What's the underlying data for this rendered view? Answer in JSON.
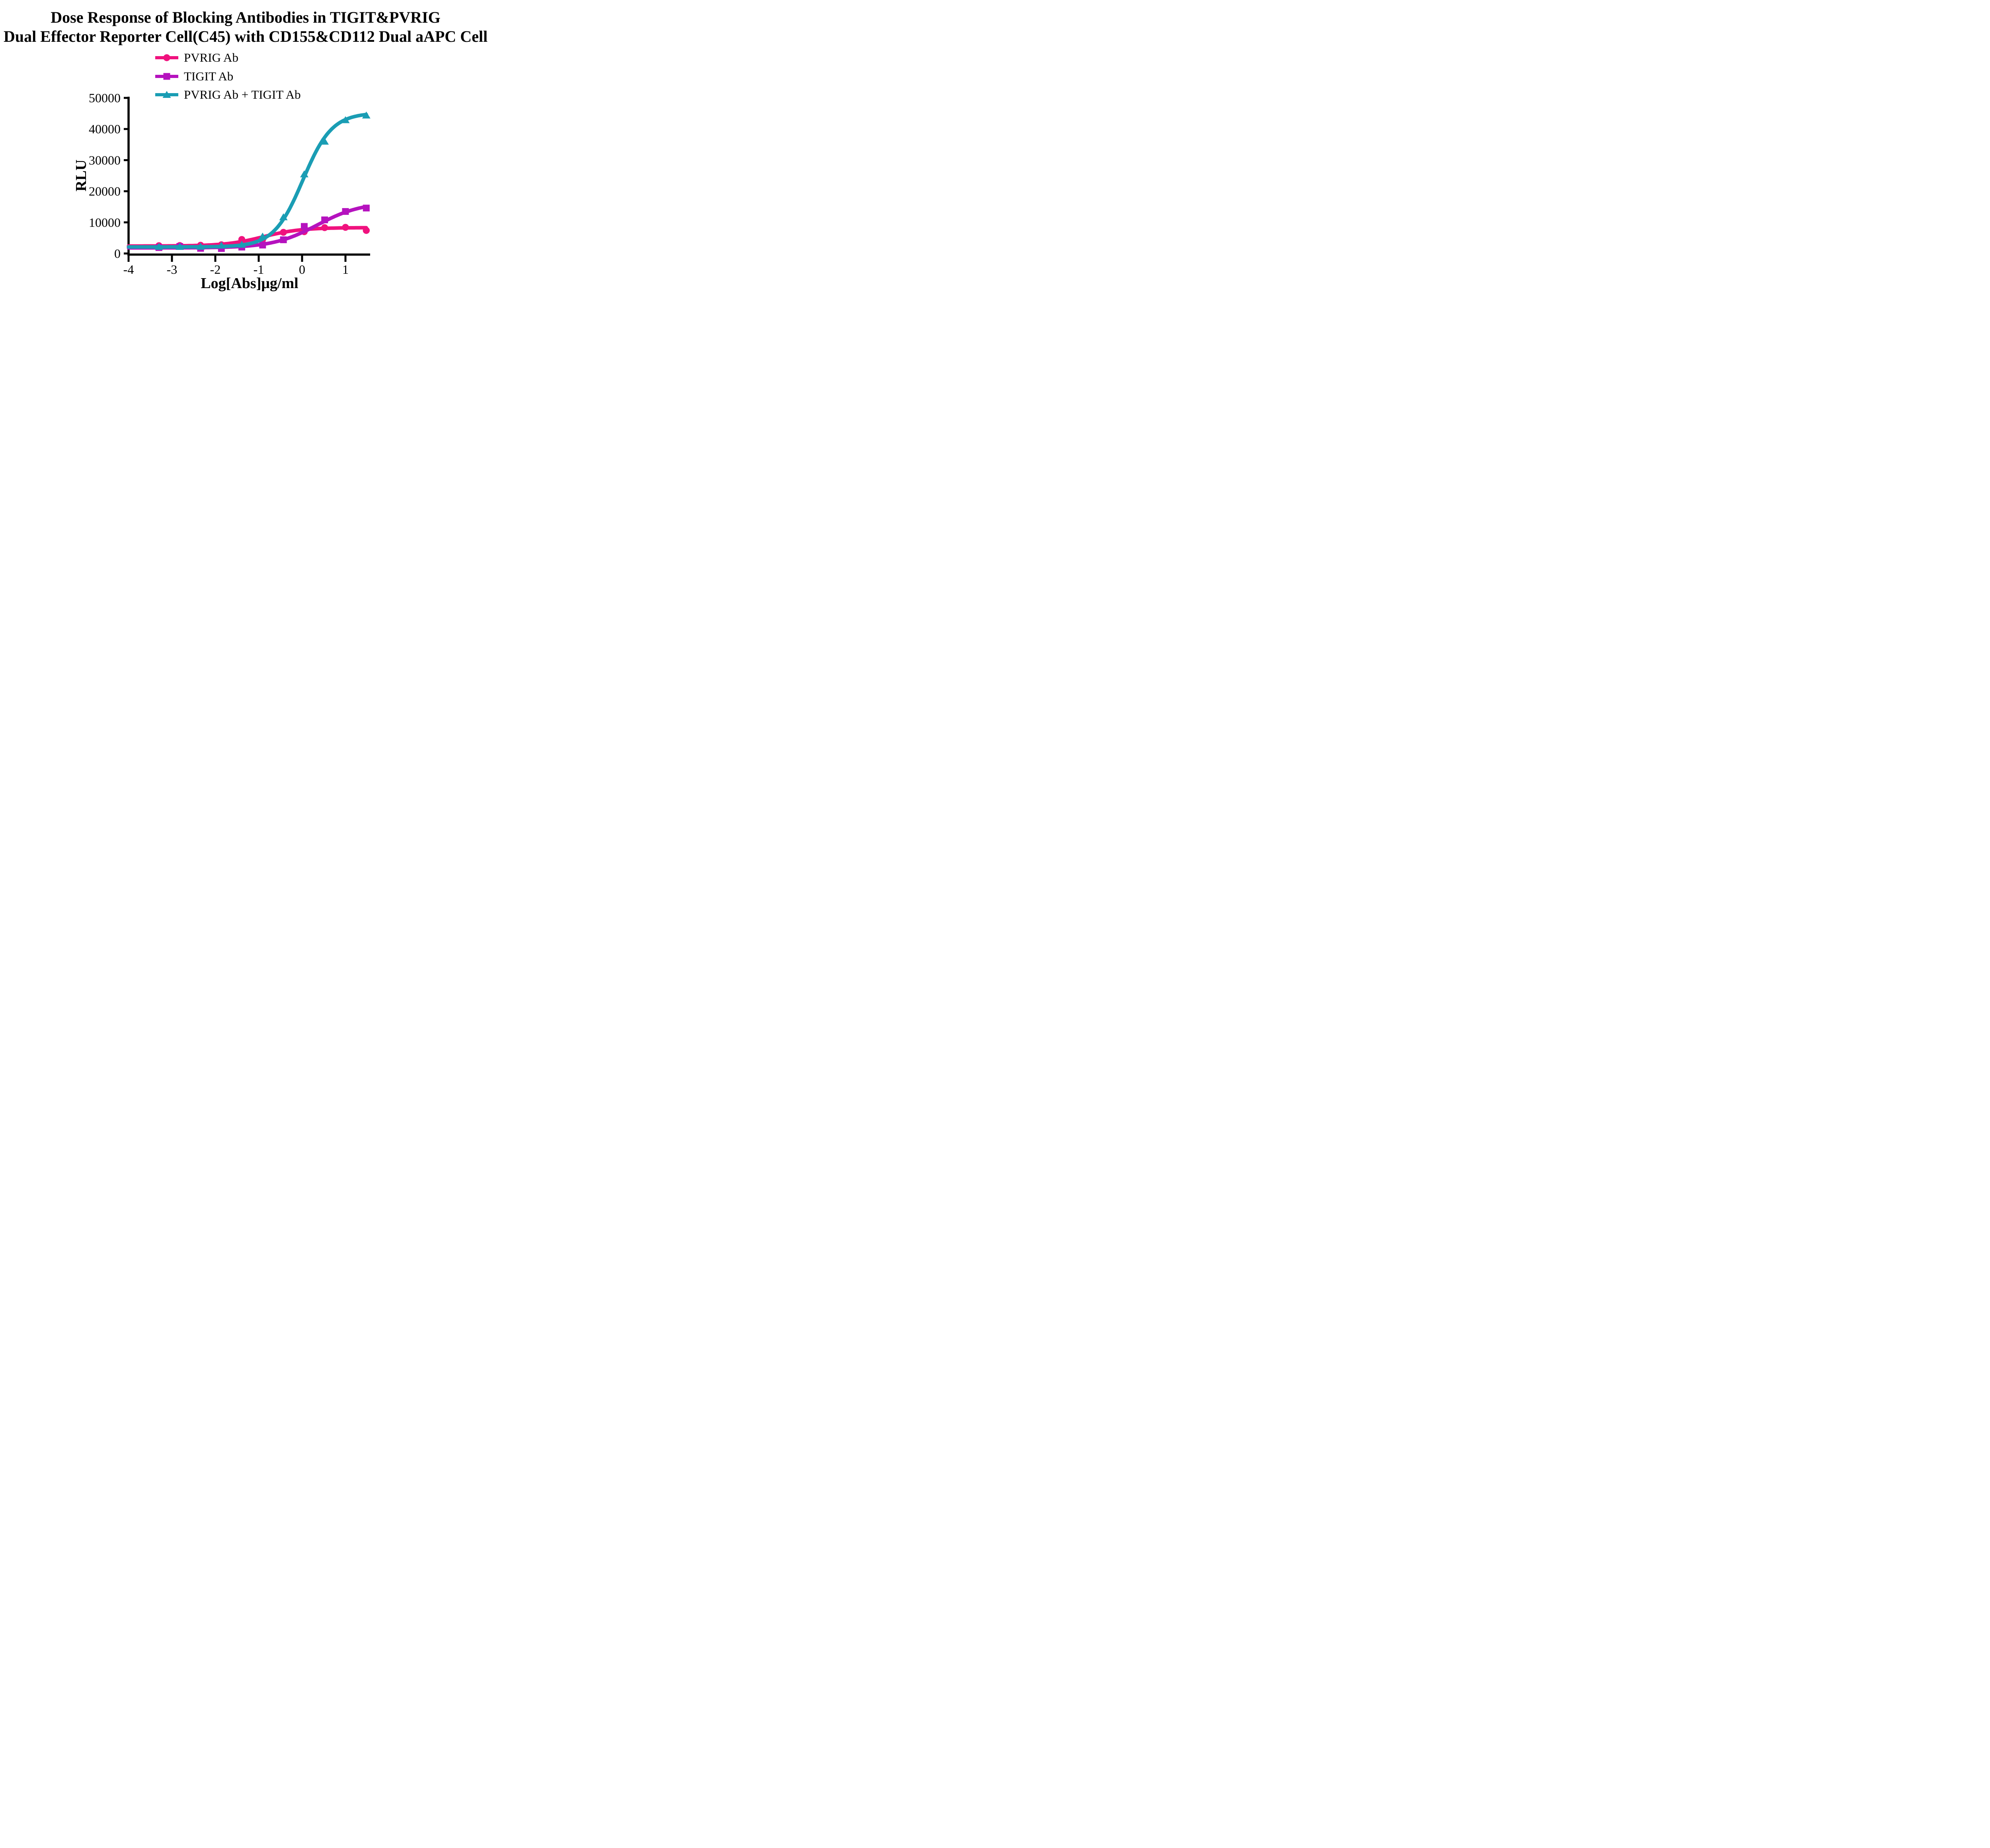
{
  "figure": {
    "title_line1": "Dose Response of Blocking Antibodies in TIGIT&PVRIG",
    "title_line2": "Dual Effector Reporter Cell(C45) with CD155&CD112 Dual aAPC Cell"
  },
  "chart_data": {
    "type": "line",
    "title": "Dose Response of Blocking Antibodies in TIGIT&PVRIG Dual Effector Reporter Cell(C45) with CD155&CD112 Dual aAPC Cell",
    "xlabel": "Log[Abs]μg/ml",
    "ylabel": "RLU",
    "xlim": [
      -4,
      1.62
    ],
    "ylim": [
      0,
      50000
    ],
    "x_ticks": [
      -4,
      -3,
      -2,
      -1,
      0,
      1
    ],
    "y_ticks": [
      0,
      10000,
      20000,
      30000,
      40000,
      50000
    ],
    "grid": false,
    "legend_position": "top-left above plot",
    "axis_color": "#000000",
    "x": [
      -3.3,
      -2.82,
      -2.34,
      -1.86,
      -1.39,
      -0.91,
      -0.43,
      0.05,
      0.52,
      1.0,
      1.48
    ],
    "series": [
      {
        "name": "PVRIG Ab",
        "color": "#F0127E",
        "marker": "circle",
        "values": [
          2500,
          2550,
          2650,
          2800,
          4500,
          4500,
          6800,
          7000,
          8300,
          8400,
          7400
        ],
        "fit": {
          "bottom": 2400,
          "top": 8300,
          "logec50": -0.9,
          "hill": 1.0
        }
      },
      {
        "name": "TIGIT Ab",
        "color": "#B512BE",
        "marker": "square",
        "values": [
          1900,
          2250,
          1650,
          1600,
          2050,
          2700,
          4400,
          8700,
          10800,
          13500,
          14600
        ],
        "fit": {
          "bottom": 1800,
          "top": 16500,
          "logec50": 0.35,
          "hill": 0.85
        }
      },
      {
        "name": "PVRIG Ab + TIGIT Ab",
        "color": "#1A9DB4",
        "marker": "triangle",
        "values": [
          2200,
          2200,
          2250,
          2600,
          2900,
          5500,
          11700,
          25500,
          36000,
          42900,
          44400
        ],
        "fit": {
          "bottom": 2100,
          "top": 45200,
          "logec50": 0.02,
          "hill": 1.3
        }
      }
    ]
  }
}
